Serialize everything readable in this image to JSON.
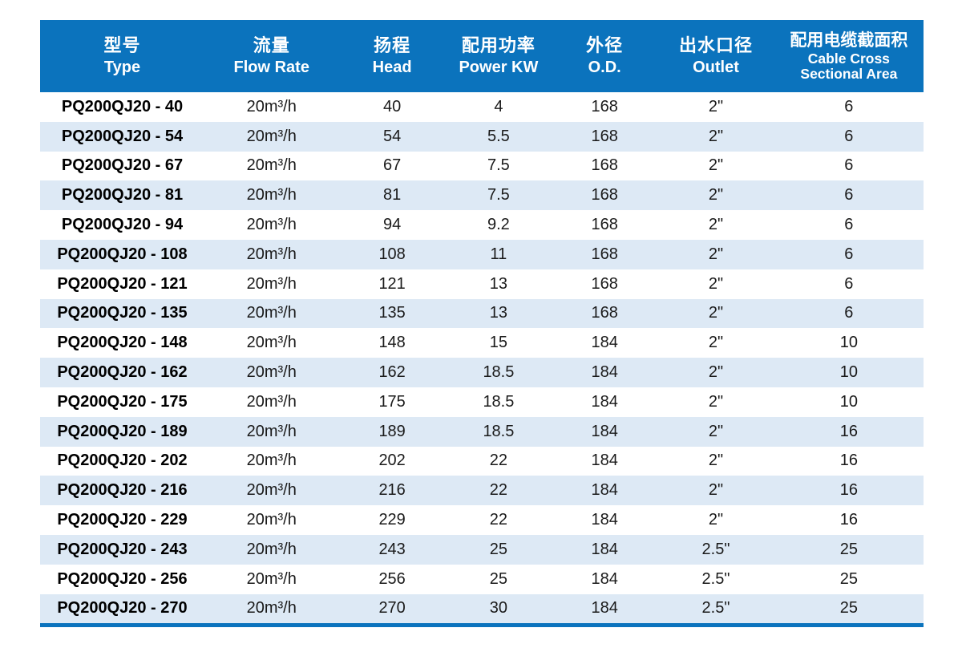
{
  "colors": {
    "header_bg": "#0b73bd",
    "header_text": "#ffffff",
    "row_alt_bg": "#dde9f5",
    "body_text": "#1a1a1a",
    "bottom_rule": "#0b73bd"
  },
  "table": {
    "columns": [
      {
        "cn": "型号",
        "en": "Type"
      },
      {
        "cn": "流量",
        "en": "Flow Rate"
      },
      {
        "cn": "扬程",
        "en": "Head"
      },
      {
        "cn": "配用功率",
        "en": "Power KW"
      },
      {
        "cn": "外径",
        "en": "O.D."
      },
      {
        "cn": "出水口径",
        "en": "Outlet"
      },
      {
        "cn": "配用电缆截面积",
        "en": "Cable Cross",
        "en2": "Sectional Area"
      }
    ],
    "rows": [
      {
        "model": "PQ200QJ20 - 40",
        "flow": "20m³/h",
        "head": "40",
        "power": "4",
        "od": "168",
        "outlet": "2\"",
        "cable": "6"
      },
      {
        "model": "PQ200QJ20 - 54",
        "flow": "20m³/h",
        "head": "54",
        "power": "5.5",
        "od": "168",
        "outlet": "2\"",
        "cable": "6"
      },
      {
        "model": "PQ200QJ20 - 67",
        "flow": "20m³/h",
        "head": "67",
        "power": "7.5",
        "od": "168",
        "outlet": "2\"",
        "cable": "6"
      },
      {
        "model": "PQ200QJ20 - 81",
        "flow": "20m³/h",
        "head": "81",
        "power": "7.5",
        "od": "168",
        "outlet": "2\"",
        "cable": "6"
      },
      {
        "model": "PQ200QJ20 - 94",
        "flow": "20m³/h",
        "head": "94",
        "power": "9.2",
        "od": "168",
        "outlet": "2\"",
        "cable": "6"
      },
      {
        "model": "PQ200QJ20 - 108",
        "flow": "20m³/h",
        "head": "108",
        "power": "11",
        "od": "168",
        "outlet": "2\"",
        "cable": "6"
      },
      {
        "model": "PQ200QJ20 - 121",
        "flow": "20m³/h",
        "head": "121",
        "power": "13",
        "od": "168",
        "outlet": "2\"",
        "cable": "6"
      },
      {
        "model": "PQ200QJ20 - 135",
        "flow": "20m³/h",
        "head": "135",
        "power": "13",
        "od": "168",
        "outlet": "2\"",
        "cable": "6"
      },
      {
        "model": "PQ200QJ20 - 148",
        "flow": "20m³/h",
        "head": "148",
        "power": "15",
        "od": "184",
        "outlet": "2\"",
        "cable": "10"
      },
      {
        "model": "PQ200QJ20 - 162",
        "flow": "20m³/h",
        "head": "162",
        "power": "18.5",
        "od": "184",
        "outlet": "2\"",
        "cable": "10"
      },
      {
        "model": "PQ200QJ20 - 175",
        "flow": "20m³/h",
        "head": "175",
        "power": "18.5",
        "od": "184",
        "outlet": "2\"",
        "cable": "10"
      },
      {
        "model": "PQ200QJ20 - 189",
        "flow": "20m³/h",
        "head": "189",
        "power": "18.5",
        "od": "184",
        "outlet": "2\"",
        "cable": "16"
      },
      {
        "model": "PQ200QJ20 - 202",
        "flow": "20m³/h",
        "head": "202",
        "power": "22",
        "od": "184",
        "outlet": "2\"",
        "cable": "16"
      },
      {
        "model": "PQ200QJ20 - 216",
        "flow": "20m³/h",
        "head": "216",
        "power": "22",
        "od": "184",
        "outlet": "2\"",
        "cable": "16"
      },
      {
        "model": "PQ200QJ20 - 229",
        "flow": "20m³/h",
        "head": "229",
        "power": "22",
        "od": "184",
        "outlet": "2\"",
        "cable": "16"
      },
      {
        "model": "PQ200QJ20 - 243",
        "flow": "20m³/h",
        "head": "243",
        "power": "25",
        "od": "184",
        "outlet": "2.5\"",
        "cable": "25"
      },
      {
        "model": "PQ200QJ20 - 256",
        "flow": "20m³/h",
        "head": "256",
        "power": "25",
        "od": "184",
        "outlet": "2.5\"",
        "cable": "25"
      },
      {
        "model": "PQ200QJ20 - 270",
        "flow": "20m³/h",
        "head": "270",
        "power": "30",
        "od": "184",
        "outlet": "2.5\"",
        "cable": "25"
      }
    ]
  }
}
